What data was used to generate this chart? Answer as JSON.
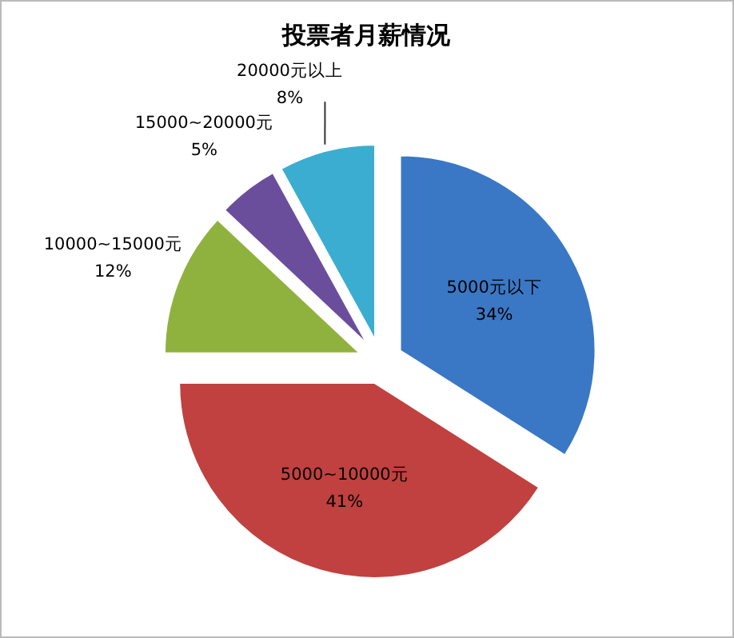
{
  "chart_data": {
    "type": "pie",
    "title": "投票者月薪情况",
    "categories": [
      "5000元以下",
      "5000~10000元",
      "10000~15000元",
      "15000~20000元",
      "20000元以上"
    ],
    "values": [
      34,
      41,
      12,
      5,
      8
    ],
    "value_labels": [
      "34%",
      "41%",
      "12%",
      "5%",
      "8%"
    ],
    "colors": [
      "#3a78c6",
      "#c0413f",
      "#8fb23f",
      "#6a4e9c",
      "#3badd0"
    ],
    "legend": false
  }
}
